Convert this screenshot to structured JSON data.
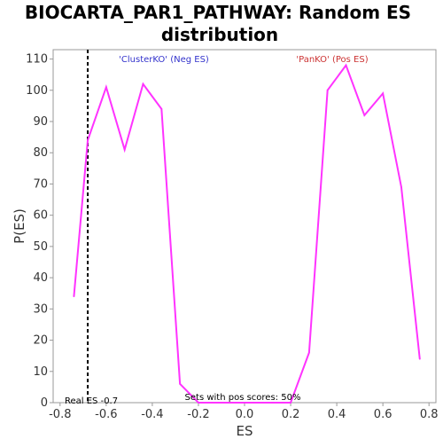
{
  "chart_data": {
    "type": "line",
    "title_line1": "BIOCARTA_PAR1_PATHWAY: Random ES",
    "title_line2": "distribution",
    "xlabel": "ES",
    "ylabel": "P(ES)",
    "xlim": [
      -0.83,
      0.83
    ],
    "ylim": [
      0,
      113
    ],
    "xticks": [
      -0.8,
      -0.6,
      -0.4,
      -0.2,
      0.0,
      0.2,
      0.4,
      0.6,
      0.8
    ],
    "xtick_labels": [
      "-0.8",
      "-0.6",
      "-0.4",
      "-0.2",
      "0.0",
      "0.2",
      "0.4",
      "0.6",
      "0.8"
    ],
    "yticks": [
      0,
      10,
      20,
      30,
      40,
      50,
      60,
      70,
      80,
      90,
      100,
      110
    ],
    "ytick_labels": [
      "0",
      "10",
      "20",
      "30",
      "40",
      "50",
      "60",
      "70",
      "80",
      "90",
      "100",
      "110"
    ],
    "grid": false,
    "series": [
      {
        "color": "#ff33ff",
        "x": [
          -0.74,
          -0.68,
          -0.6,
          -0.52,
          -0.44,
          -0.36,
          -0.28,
          -0.2,
          -0.12,
          -0.04,
          0.04,
          0.12,
          0.2,
          0.28,
          0.36,
          0.44,
          0.52,
          0.6,
          0.68,
          0.76
        ],
        "y": [
          34,
          84,
          101,
          81,
          102,
          94,
          6,
          0,
          0,
          0,
          0,
          0,
          0,
          16,
          100,
          108,
          92,
          99,
          69,
          14
        ]
      }
    ],
    "real_es": -0.68,
    "annotations": {
      "neg_label": "'ClusterKO' (Neg ES)",
      "neg_color": "#3333cc",
      "pos_label": "'PanKO' (Pos ES)",
      "pos_color": "#cc3333",
      "real_es_label": "Real ES -0.7",
      "pos_scores_label": "Sets with pos scores: 50%"
    }
  }
}
